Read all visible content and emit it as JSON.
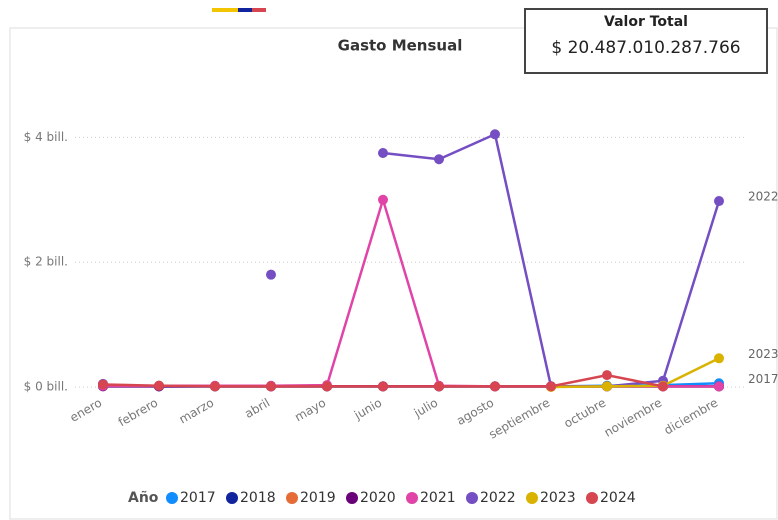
{
  "chart_data": {
    "type": "line",
    "title": "Gasto Mensual",
    "categories": [
      "enero",
      "febrero",
      "marzo",
      "abril",
      "mayo",
      "junio",
      "julio",
      "agosto",
      "septiembre",
      "octubre",
      "noviembre",
      "diciembre"
    ],
    "ylim": [
      0,
      5
    ],
    "yticks": [
      {
        "value": 0,
        "label": "$ 0 bill."
      },
      {
        "value": 2,
        "label": "$ 2 bill."
      },
      {
        "value": 4,
        "label": "$ 4 bill."
      }
    ],
    "grid": true,
    "legend_title": "Año",
    "series": [
      {
        "name": "2017",
        "color": "#118DFF",
        "values": [
          0.02,
          0.01,
          0.01,
          0.01,
          0.01,
          0.01,
          0.01,
          0.01,
          0.01,
          0.02,
          0.03,
          0.06
        ]
      },
      {
        "name": "2018",
        "color": "#12239E",
        "values": [
          0.03,
          0.01,
          0.01,
          0.01,
          0.01,
          0.01,
          0.01,
          0.01,
          0.01,
          0.01,
          0.01,
          0.01
        ]
      },
      {
        "name": "2019",
        "color": "#E66C37",
        "values": [
          0.02,
          0.02,
          0.01,
          0.01,
          0.01,
          0.01,
          0.01,
          0.01,
          0.01,
          0.01,
          0.01,
          0.01
        ]
      },
      {
        "name": "2020",
        "color": "#6B007B",
        "values": [
          0.01,
          0.01,
          0.01,
          0.01,
          0.01,
          0.01,
          0.01,
          0.01,
          0.01,
          0.01,
          0.01,
          0.01
        ]
      },
      {
        "name": "2021",
        "color": "#E044A7",
        "values": [
          0.02,
          0.02,
          0.02,
          0.02,
          0.03,
          3.0,
          0.02,
          0.01,
          0.01,
          0.01,
          0.01,
          0.01
        ]
      },
      {
        "name": "2022",
        "color": "#744EC2",
        "values": [
          0.05,
          null,
          null,
          1.8,
          null,
          3.75,
          3.65,
          4.05,
          0.01,
          0.01,
          0.1,
          2.98
        ]
      },
      {
        "name": "2023",
        "color": "#D9B300",
        "values": [
          null,
          null,
          null,
          null,
          null,
          null,
          null,
          null,
          0.0,
          0.01,
          0.02,
          0.46
        ]
      },
      {
        "name": "2024",
        "color": "#D64550",
        "values": [
          0.04,
          0.02,
          0.01,
          0.01,
          0.01,
          0.01,
          0.01,
          0.01,
          0.01,
          0.19,
          0.01,
          null
        ]
      }
    ],
    "end_labels": [
      5,
      6,
      0
    ]
  },
  "card": {
    "title": "Valor Total",
    "value": "$ 20.487.010.287.766"
  }
}
